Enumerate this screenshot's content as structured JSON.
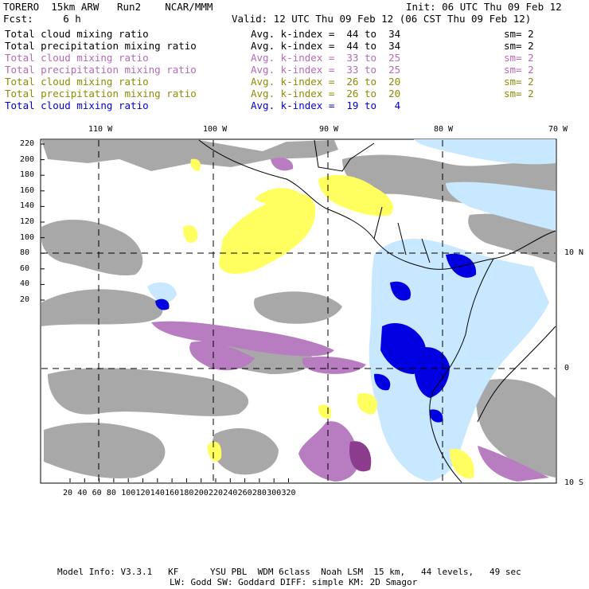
{
  "header": {
    "title_left": "TORERO  15km ARW   Run2    NCAR/MMM",
    "init": "Init: 06 UTC Thu 09 Feb 12",
    "fcst_left": "Fcst:     6 h",
    "valid": "Valid: 12 UTC Thu 09 Feb 12 (06 CST Thu 09 Feb 12)"
  },
  "legend": [
    {
      "field": "Total cloud mixing ratio",
      "avg": "Avg. k-index =  44 to  34",
      "sm": "sm= 2",
      "color": "#000000"
    },
    {
      "field": "Total precipitation mixing ratio",
      "avg": "Avg. k-index =  44 to  34",
      "sm": "sm= 2",
      "color": "#000000"
    },
    {
      "field": "Total cloud mixing ratio",
      "avg": "Avg. k-index =  33 to  25",
      "sm": "sm= 2",
      "color": "#b46ab4"
    },
    {
      "field": "Total precipitation mixing ratio",
      "avg": "Avg. k-index =  33 to  25",
      "sm": "sm= 2",
      "color": "#b46ab4"
    },
    {
      "field": "Total cloud mixing ratio",
      "avg": "Avg. k-index =  26 to  20",
      "sm": "sm= 2",
      "color": "#8c8c00"
    },
    {
      "field": "Total precipitation mixing ratio",
      "avg": "Avg. k-index =  26 to  20",
      "sm": "sm= 2",
      "color": "#8c8c00"
    },
    {
      "field": "Total cloud mixing ratio",
      "avg": "Avg. k-index =  19 to   4",
      "sm": "",
      "color": "#0000d0"
    }
  ],
  "map": {
    "lon_labels": [
      "110 W",
      "100 W",
      "90 W",
      "80 W",
      "70 W"
    ],
    "lat_labels": [
      "10 N",
      "0",
      "10 S"
    ],
    "y_ticks": [
      "220",
      "200",
      "180",
      "160",
      "140",
      "120",
      "100",
      "80",
      "60",
      "40",
      "20"
    ],
    "x_ticks": [
      "20",
      "40",
      "60",
      "80",
      "100",
      "120",
      "140",
      "160",
      "180",
      "200",
      "220",
      "240",
      "260",
      "280",
      "300",
      "320"
    ],
    "colors": {
      "gray": "#a8a8a8",
      "purple": "#b87cc0",
      "yellow": "#ffff60",
      "lightblue": "#c8e8ff",
      "blue": "#0000e0",
      "coast": "#000000"
    }
  },
  "footer": {
    "line1": "Model Info: V3.3.1   KF      YSU PBL  WDM 6class  Noah LSM  15 km,   44 levels,   49 sec",
    "line2": "LW: Godd SW: Goddard DIFF: simple KM: 2D Smagor"
  }
}
